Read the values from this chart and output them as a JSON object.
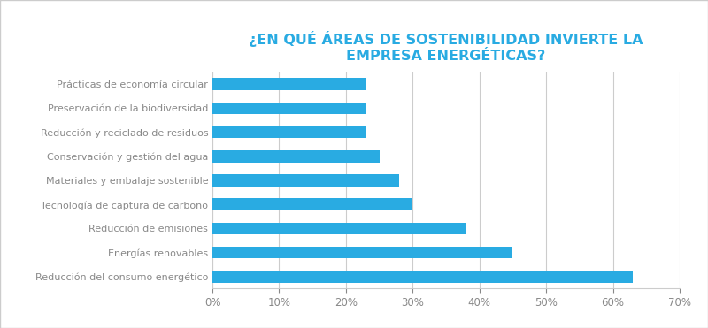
{
  "title_line1": "¿EN QUÉ ÁREAS DE SOSTENIBILIDAD INVIERTE LA",
  "title_line2": "EMPRESA ENERGÉTICAS?",
  "title_color": "#29abe2",
  "categories": [
    "Reducción del consumo energético",
    "Energías renovables",
    "Reducción de emisiones",
    "Tecnología de captura de carbono",
    "Materiales y embalaje sostenible",
    "Conservación y gestión del agua",
    "Reducción y reciclado de residuos",
    "Preservación de la biodiversidad",
    "Prácticas de economía circular"
  ],
  "values": [
    0.63,
    0.45,
    0.38,
    0.3,
    0.28,
    0.25,
    0.23,
    0.23,
    0.23
  ],
  "bar_color": "#29abe2",
  "background_color": "#ffffff",
  "label_color": "#888888",
  "grid_color": "#cccccc",
  "border_color": "#cccccc",
  "xlim": [
    0,
    0.7
  ],
  "xticks": [
    0.0,
    0.1,
    0.2,
    0.3,
    0.4,
    0.5,
    0.6,
    0.7
  ],
  "bar_height": 0.5,
  "label_fontsize": 8.0,
  "title_fontsize": 11.5,
  "tick_fontsize": 8.5
}
